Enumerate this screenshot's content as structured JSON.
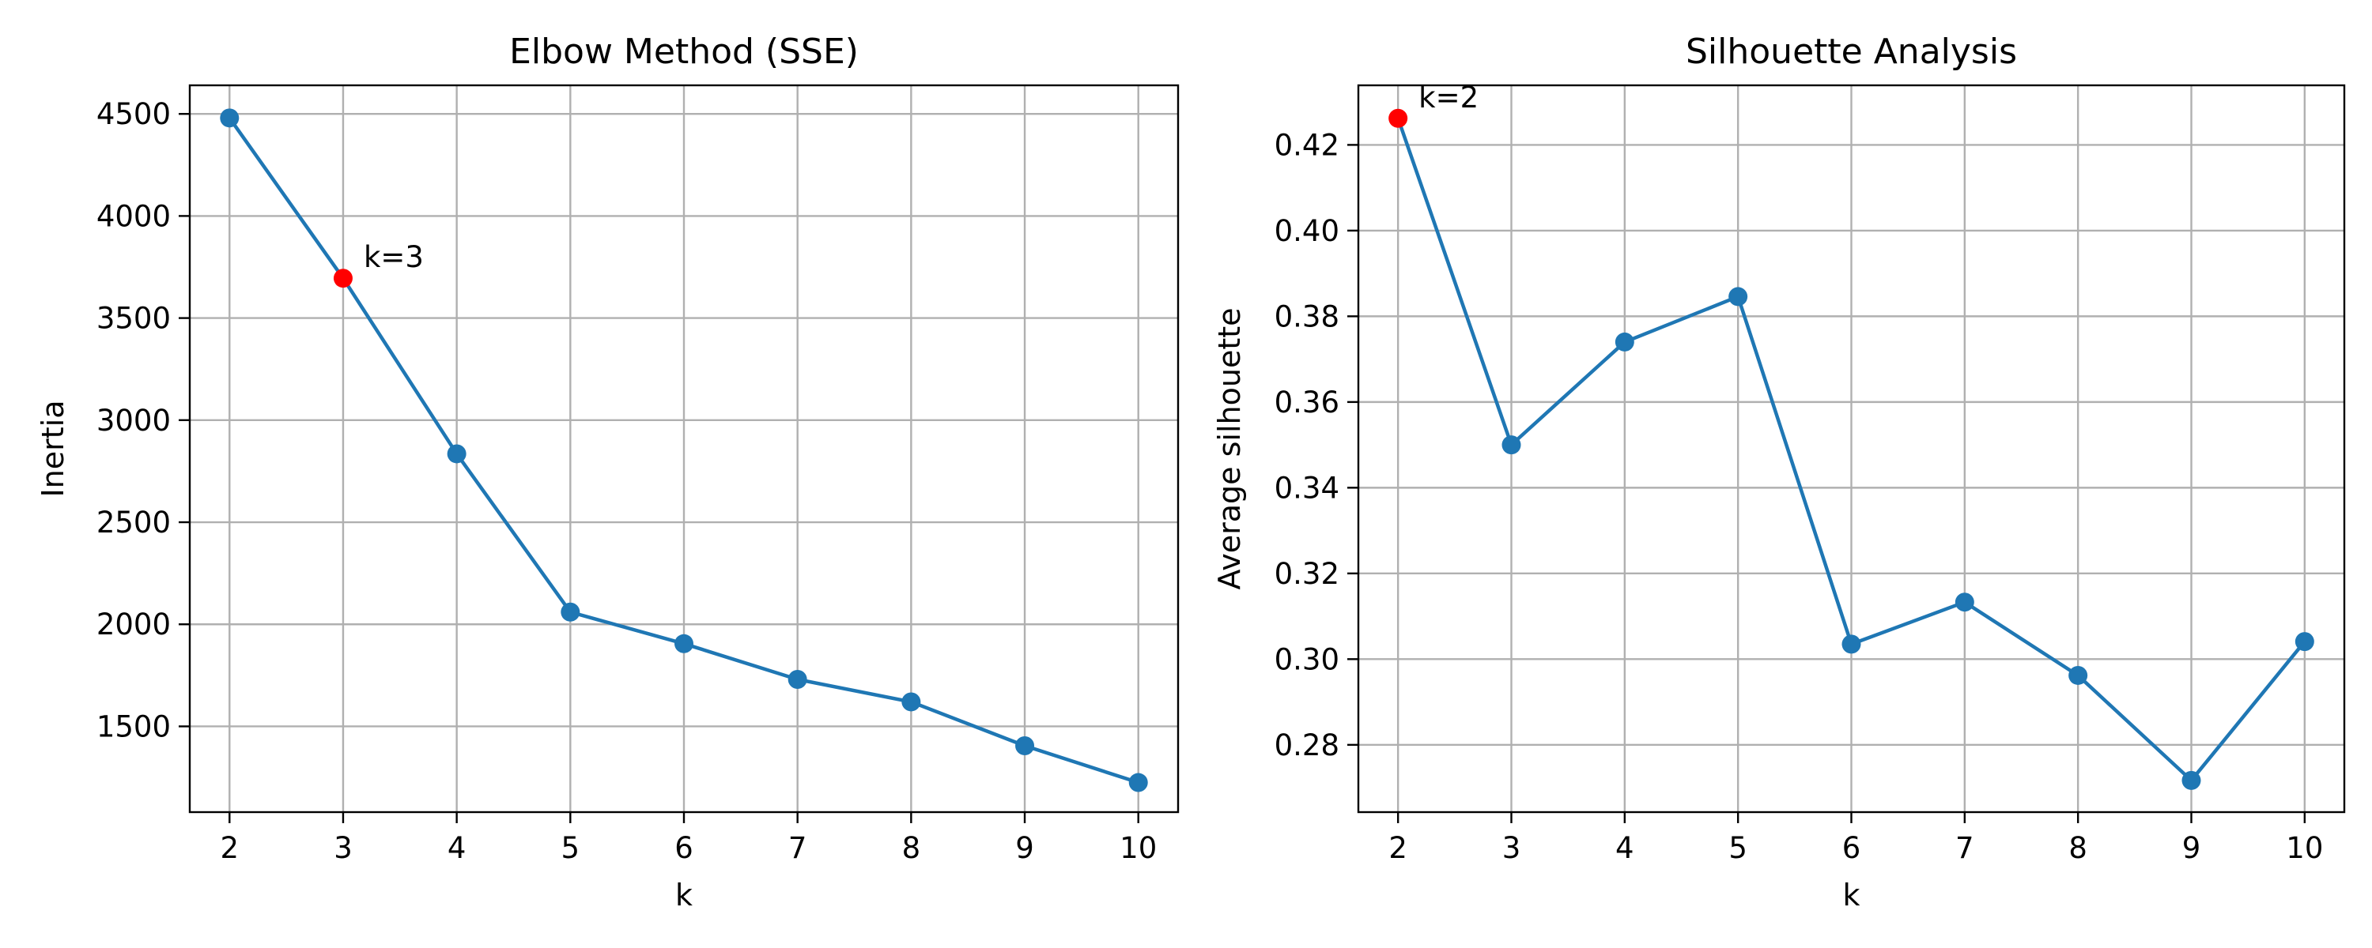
{
  "chart_data": [
    {
      "type": "line",
      "title": "Elbow Method (SSE)",
      "xlabel": "k",
      "ylabel": "Inertia",
      "x": [
        2,
        3,
        4,
        5,
        6,
        7,
        8,
        9,
        10
      ],
      "series": [
        {
          "values": [
            4480,
            3695,
            2835,
            2060,
            1905,
            1730,
            1620,
            1405,
            1225
          ]
        }
      ],
      "xlim": [
        1.65,
        10.35
      ],
      "ylim": [
        1080,
        4640
      ],
      "xticks": [
        2,
        3,
        4,
        5,
        6,
        7,
        8,
        9,
        10
      ],
      "yticks": [
        1500,
        2000,
        2500,
        3000,
        3500,
        4000,
        4500
      ],
      "highlight": {
        "x": 3,
        "y": 3695,
        "label": "k=3",
        "color": "#ff0000"
      },
      "line_color": "#1f77b4",
      "grid": true,
      "legend": "none"
    },
    {
      "type": "line",
      "title": "Silhouette Analysis",
      "xlabel": "k",
      "ylabel": "Average silhouette",
      "x": [
        2,
        3,
        4,
        5,
        6,
        7,
        8,
        9,
        10
      ],
      "series": [
        {
          "values": [
            0.4262,
            0.35,
            0.374,
            0.3846,
            0.3035,
            0.3133,
            0.2962,
            0.2717,
            0.3041
          ]
        }
      ],
      "xlim": [
        1.65,
        10.35
      ],
      "ylim": [
        0.2643,
        0.4339
      ],
      "xticks": [
        2,
        3,
        4,
        5,
        6,
        7,
        8,
        9,
        10
      ],
      "yticks": [
        0.28,
        0.3,
        0.32,
        0.34,
        0.36,
        0.38,
        0.4,
        0.42
      ],
      "ytick_labels": [
        "0.28",
        "0.30",
        "0.32",
        "0.34",
        "0.36",
        "0.38",
        "0.40",
        "0.42"
      ],
      "highlight": {
        "x": 2,
        "y": 0.4262,
        "label": "k=2",
        "color": "#ff0000"
      },
      "line_color": "#1f77b4",
      "grid": true,
      "legend": "none"
    }
  ]
}
